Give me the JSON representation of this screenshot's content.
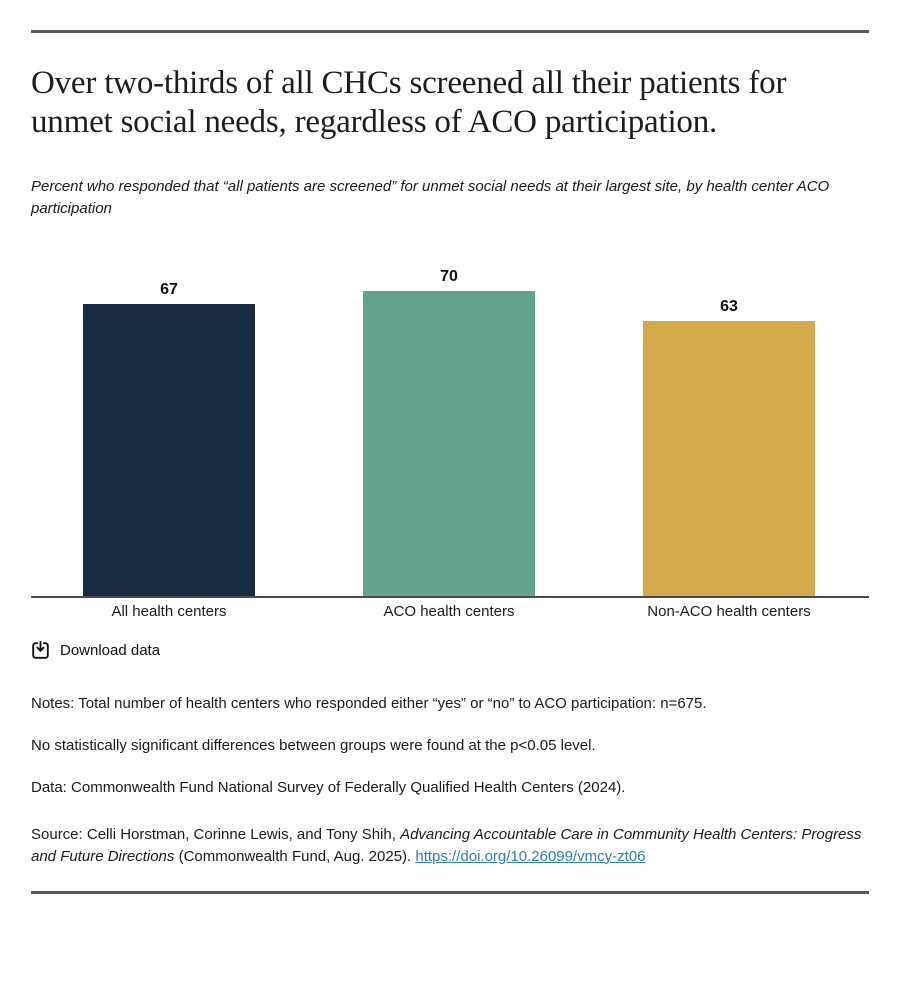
{
  "chart_data": {
    "type": "bar",
    "title": "Over two-thirds of all CHCs screened all their patients for unmet social needs, regardless of ACO participation.",
    "subtitle": "Percent who responded that “all patients are screened” for unmet social needs at their largest site, by health center ACO participation",
    "categories": [
      "All health centers",
      "ACO health centers",
      "Non-ACO health centers"
    ],
    "values": [
      67,
      70,
      63
    ],
    "colors": [
      "#192B40",
      "#64A290",
      "#D5AA4D"
    ],
    "value_labels_shown": true,
    "xlabel": "",
    "ylabel": "",
    "ylim": [
      0,
      80
    ],
    "grid": false,
    "legend": false
  },
  "download": {
    "label": "Download data",
    "icon": "download-icon"
  },
  "notes": {
    "note1": "Notes: Total number of health centers who responded either “yes” or “no” to ACO participation: n=675.",
    "note2": "No statistically significant differences between groups were found at the p<0.05 level.",
    "data_line": "Data: Commonwealth Fund National Survey of Federally Qualified Health Centers (2024)."
  },
  "source": {
    "prefix": "Source: Celli Horstman, Corinne Lewis, and Tony Shih, ",
    "book_title": "Advancing Accountable Care in Community Health Centers: Progress and Future Directions",
    "suffix": " (Commonwealth Fund, Aug. 2025). ",
    "link_text": "https://doi.org/10.26099/vmcy-zt06",
    "link_href": "https://doi.org/10.26099/vmcy-zt06"
  },
  "colors": {
    "rule_gray": "#59595B",
    "axis_gray": "#4A4A4A",
    "link_blue": "#2E7DB4",
    "text": "#1A1A1A"
  }
}
